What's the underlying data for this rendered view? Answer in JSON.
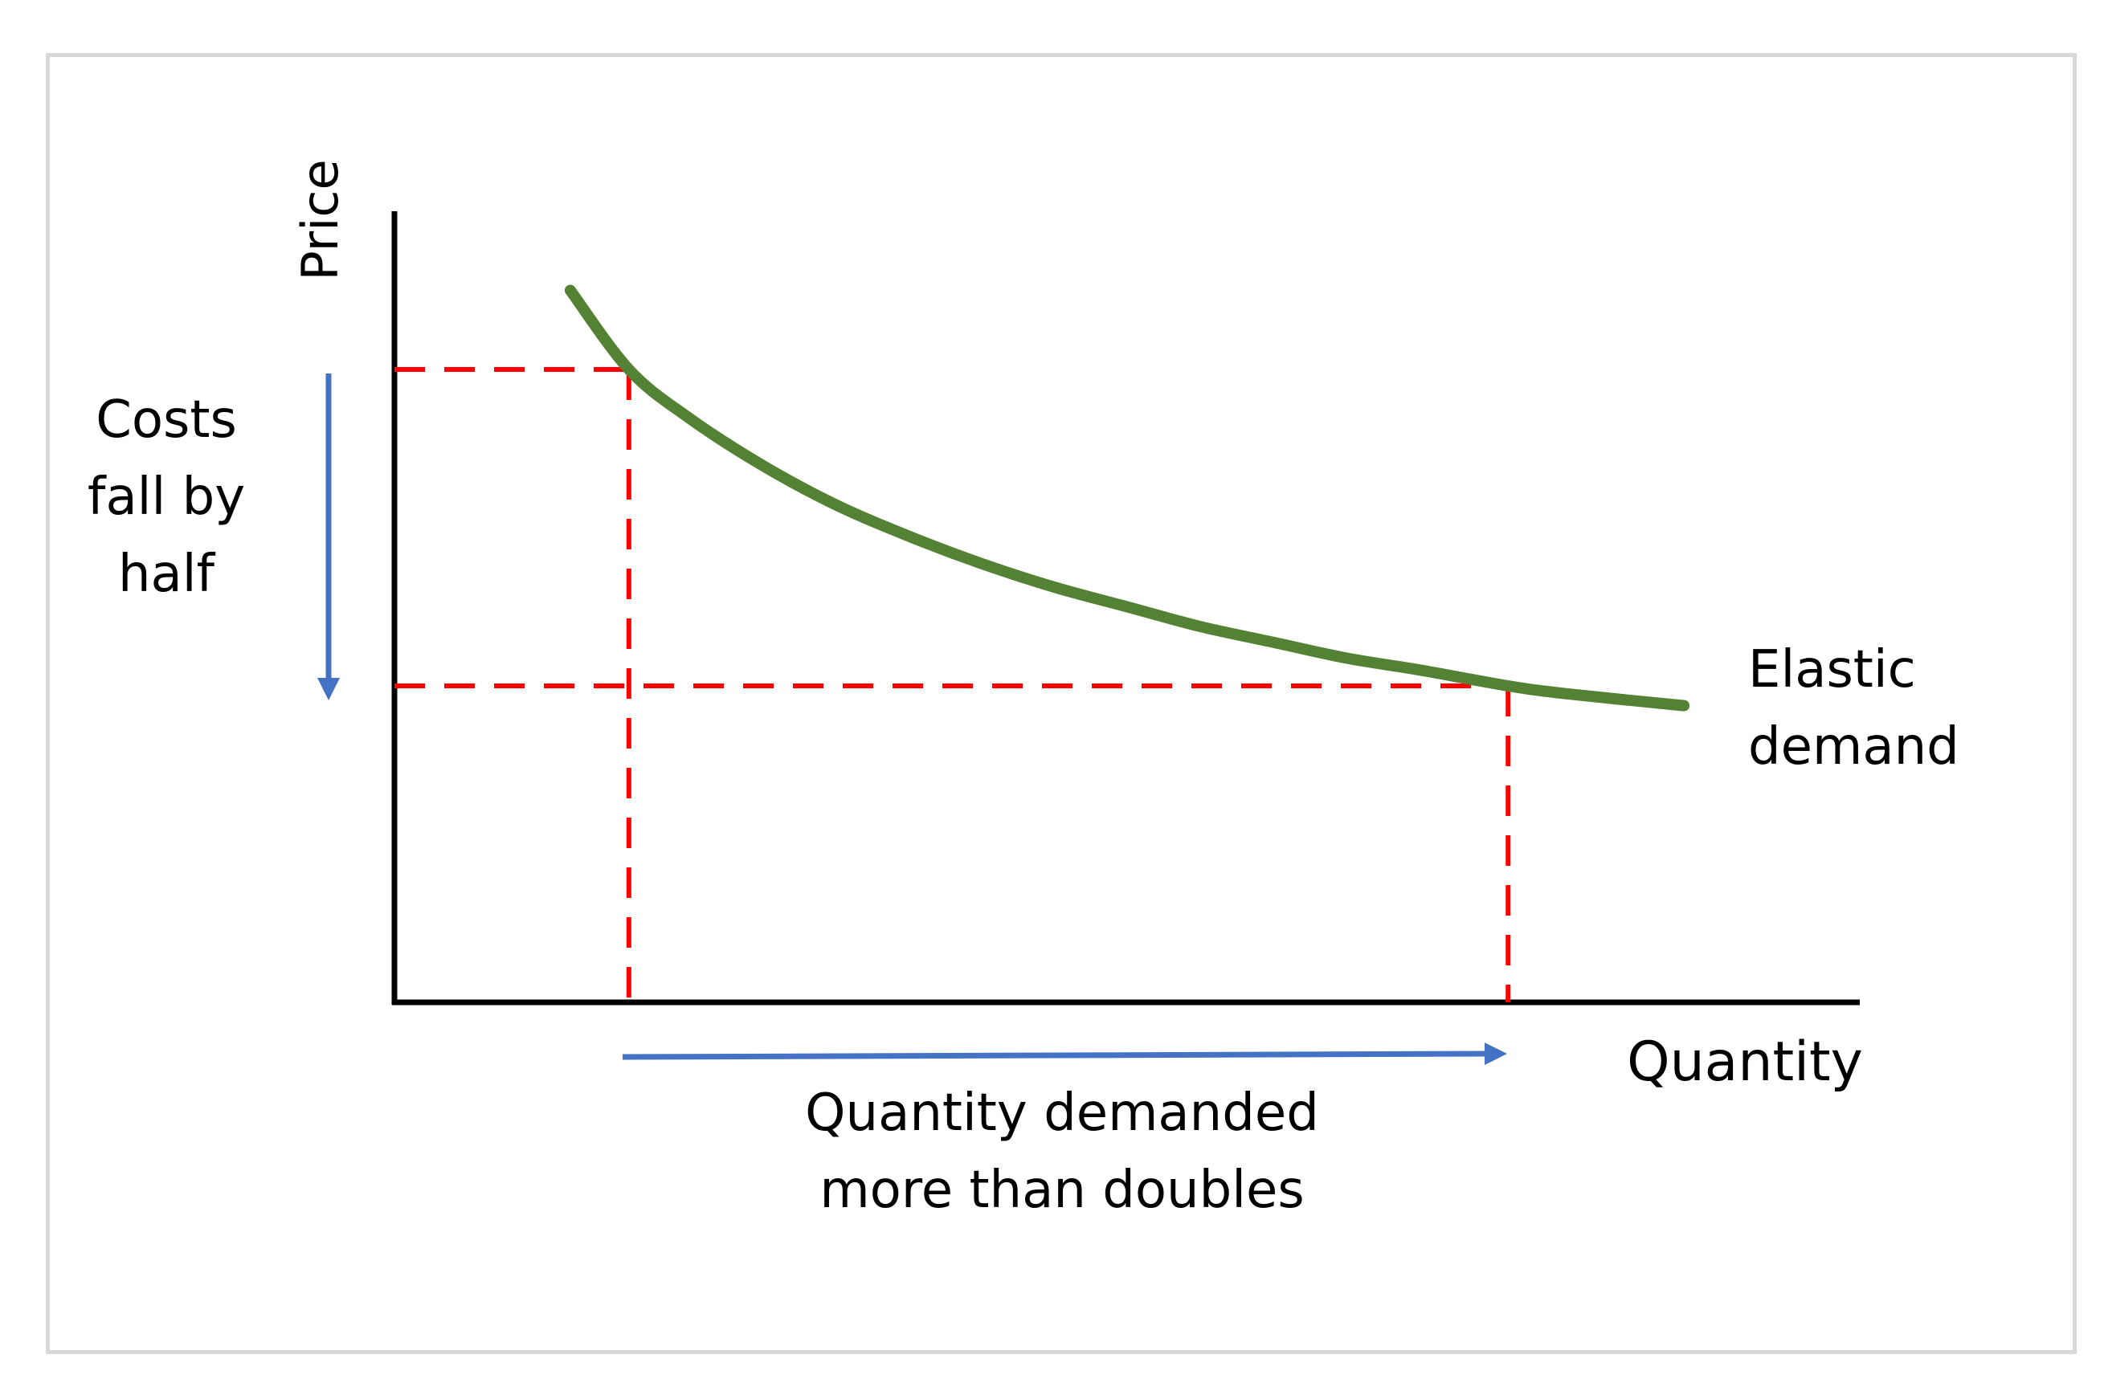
{
  "chart_data": {
    "type": "line",
    "title": "",
    "xlabel": "Quantity",
    "ylabel": "Price",
    "xlim": [
      0,
      10
    ],
    "ylim": [
      0,
      10
    ],
    "grid": false,
    "series": [
      {
        "name": "Elastic demand",
        "color": "#548235",
        "x": [
          1.2,
          1.6,
          2.0,
          2.5,
          3.0,
          3.5,
          4.0,
          4.5,
          5.0,
          5.5,
          6.0,
          6.5,
          7.0,
          7.6,
          8.0,
          8.8
        ],
        "y": [
          9.0,
          8.0,
          7.4,
          6.8,
          6.3,
          5.9,
          5.55,
          5.25,
          5.0,
          4.75,
          4.55,
          4.35,
          4.2,
          4.0,
          3.9,
          3.75
        ]
      }
    ],
    "reference_points": [
      {
        "name": "initial price and quantity",
        "x": 1.6,
        "y": 8.0
      },
      {
        "name": "new price and quantity",
        "x": 7.6,
        "y": 4.0
      }
    ],
    "reference_line_color": "#ff0000",
    "annotations": {
      "series_label_line1": "Elastic",
      "series_label_line2": "demand",
      "price_note_line1": "Costs",
      "price_note_line2": "fall by",
      "price_note_line3": "half",
      "quantity_note_line1": "Quantity demanded",
      "quantity_note_line2": "more than doubles",
      "arrow_color": "#4472c4"
    }
  }
}
